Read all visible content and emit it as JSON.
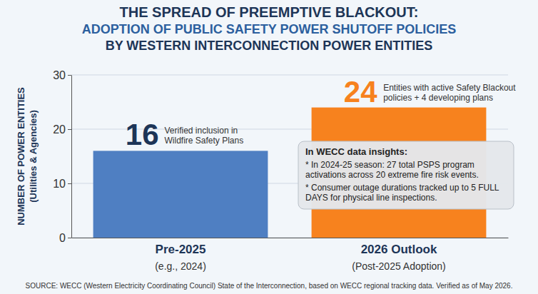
{
  "chart_data": {
    "type": "bar",
    "title": [
      "THE SPREAD OF PREEMPTIVE BLACKOUT:",
      "ADOPTION OF PUBLIC SAFETY POWER SHUTOFF POLICIES",
      "BY WESTERN INTERCONNECTION POWER ENTITIES"
    ],
    "ylabel": [
      "NUMBER OF POWER ENTITIES",
      "(Utilities & Agencies)"
    ],
    "categories": [
      "Pre-2025",
      "2026 Outlook"
    ],
    "category_notes": [
      "(e.g., 2024)",
      "(Post-2025 Adoption)"
    ],
    "values": [
      16,
      24
    ],
    "colors": [
      "#4f7fc2",
      "#f7821e"
    ],
    "data_labels": true,
    "value_notes": [
      "Verified inclusion in Wildfire Safety Plans",
      "Entities with active Safety Blackout policies + 4 developing plans"
    ],
    "ylim": [
      0,
      30
    ],
    "yticks": [
      0,
      10,
      20,
      30
    ],
    "grid": true,
    "insights": {
      "title": "In WECC data insights:",
      "items": [
        "* In 2024-25 season: 27 total PSPS program activations across 20 extreme fire risk events.",
        "* Consumer outage durations tracked up to 5 FULL DAYS for physical line inspections."
      ]
    },
    "source": "SOURCE: WECC (Western Electricity Coordinating Council) State of the Interconnection, based on WECC regional tracking data. Verified as of May 2026."
  }
}
